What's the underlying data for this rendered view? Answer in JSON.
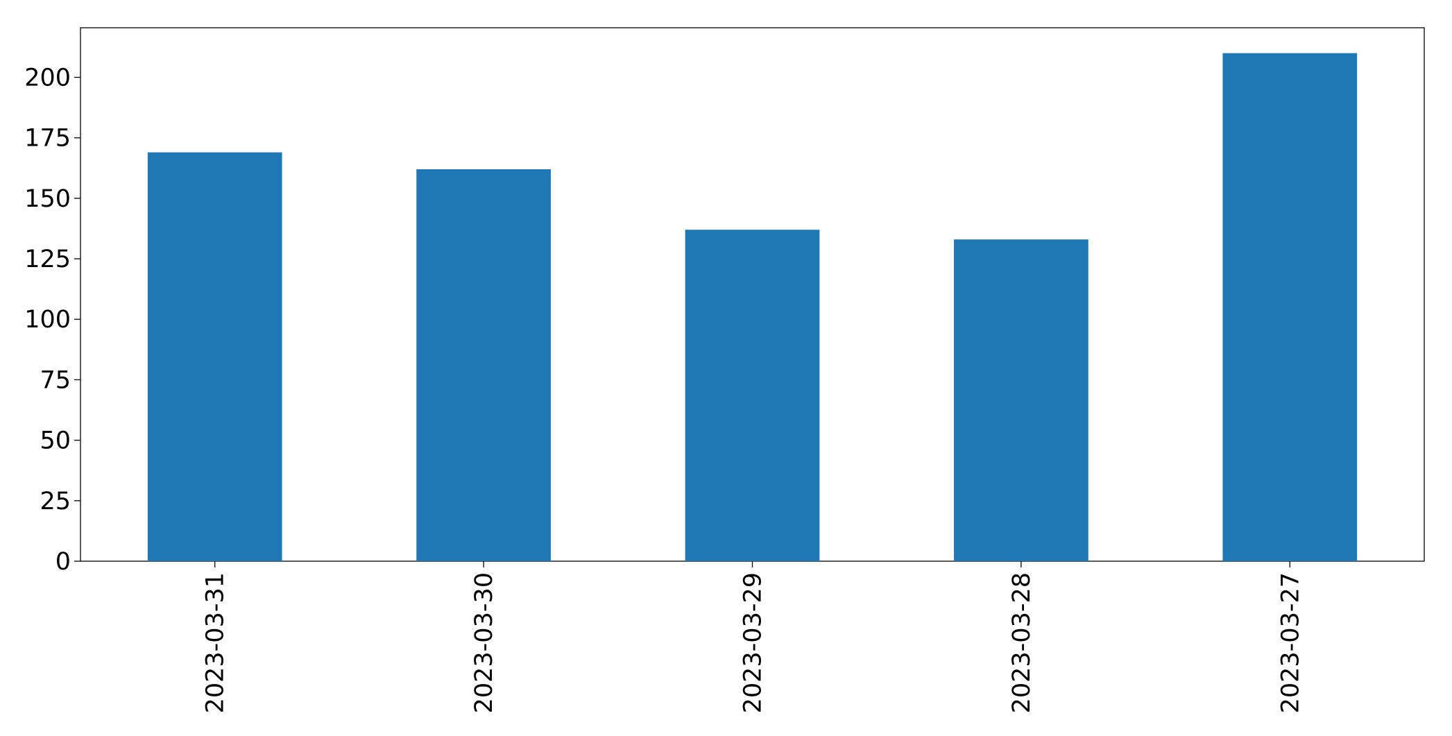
{
  "chart_data": {
    "type": "bar",
    "categories": [
      "2023-03-31",
      "2023-03-30",
      "2023-03-29",
      "2023-03-28",
      "2023-03-27"
    ],
    "values": [
      169,
      162,
      137,
      133,
      210
    ],
    "color": "#1f77b4",
    "ylim": [
      0,
      220.5
    ],
    "yticks": [
      0,
      25,
      50,
      75,
      100,
      125,
      150,
      175,
      200
    ]
  }
}
